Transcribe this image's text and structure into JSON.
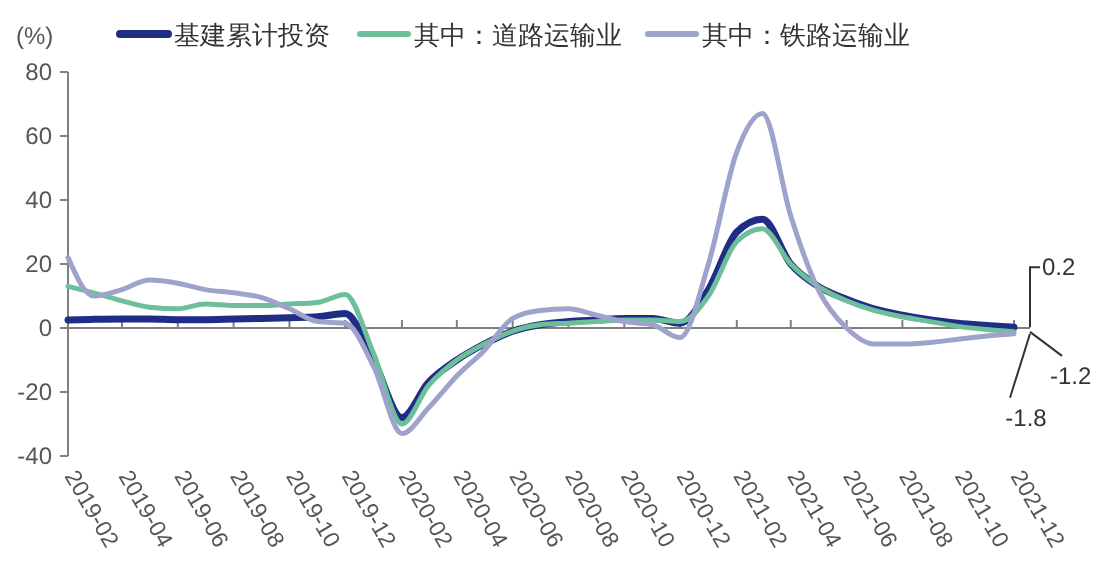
{
  "chart_data": {
    "type": "line",
    "ylabel": "(%)",
    "x": [
      "2019-02",
      "2019-03",
      "2019-04",
      "2019-05",
      "2019-06",
      "2019-07",
      "2019-08",
      "2019-09",
      "2019-10",
      "2019-11",
      "2019-12",
      "2020-01",
      "2020-02",
      "2020-03",
      "2020-04",
      "2020-05",
      "2020-06",
      "2020-07",
      "2020-08",
      "2020-09",
      "2020-10",
      "2020-11",
      "2020-12",
      "2021-01",
      "2021-02",
      "2021-03",
      "2021-04",
      "2021-05",
      "2021-06",
      "2021-07",
      "2021-08",
      "2021-09",
      "2021-10",
      "2021-11",
      "2021-12"
    ],
    "series": [
      {
        "name": "基建累计投资",
        "color": "#1f2d86",
        "values": [
          2.5,
          2.7,
          2.8,
          2.8,
          2.6,
          2.6,
          2.8,
          3,
          3.2,
          3.5,
          4.5,
          -10,
          -28,
          -17,
          -10,
          -5,
          -1,
          1,
          2,
          2.5,
          3,
          3,
          1.5,
          12,
          30,
          34,
          20,
          13,
          9,
          6,
          4,
          2.5,
          1.5,
          0.8,
          0.2
        ]
      },
      {
        "name": "其中：道路运输业",
        "color": "#6dbf9a",
        "values": [
          13,
          11,
          8.5,
          6.5,
          6,
          7.5,
          7,
          7,
          7.5,
          8,
          10.5,
          -8,
          -30,
          -18,
          -10,
          -5,
          -1,
          1,
          1.5,
          2,
          2.5,
          2.5,
          2,
          10,
          27,
          31,
          20,
          13,
          8.5,
          5.5,
          3.5,
          2,
          0.5,
          -0.5,
          -1.2
        ]
      },
      {
        "name": "其中：铁路运输业",
        "color": "#9ea3cc",
        "values": [
          22,
          10,
          12,
          15,
          14,
          12,
          11,
          9.5,
          6,
          2,
          1.5,
          -12,
          -33,
          -25,
          -15,
          -7,
          3,
          5.5,
          6,
          4,
          2,
          1,
          -3,
          20,
          55,
          67,
          35,
          12,
          0,
          -5,
          -5,
          -4.5,
          -3.5,
          -2.5,
          -1.8
        ]
      }
    ],
    "xlim": [
      "2019-02",
      "2021-12"
    ],
    "xticks": [
      "2019-02",
      "2019-04",
      "2019-06",
      "2019-08",
      "2019-10",
      "2019-12",
      "2020-02",
      "2020-04",
      "2020-06",
      "2020-08",
      "2020-10",
      "2020-12",
      "2021-02",
      "2021-04",
      "2021-06",
      "2021-08",
      "2021-10",
      "2021-12"
    ],
    "ylim": [
      -40,
      80
    ],
    "yticks": [
      -40,
      -20,
      0,
      20,
      40,
      60,
      80
    ],
    "legend": "top",
    "marker": "none",
    "line_style": "solid",
    "annotations": [
      {
        "text": "0.2",
        "x": "2021-12",
        "y": 0.2
      },
      {
        "text": "-1.2",
        "x": "2021-12",
        "y": -1.2
      },
      {
        "text": "-1.8",
        "x": "2021-12",
        "y": -1.8
      }
    ]
  }
}
